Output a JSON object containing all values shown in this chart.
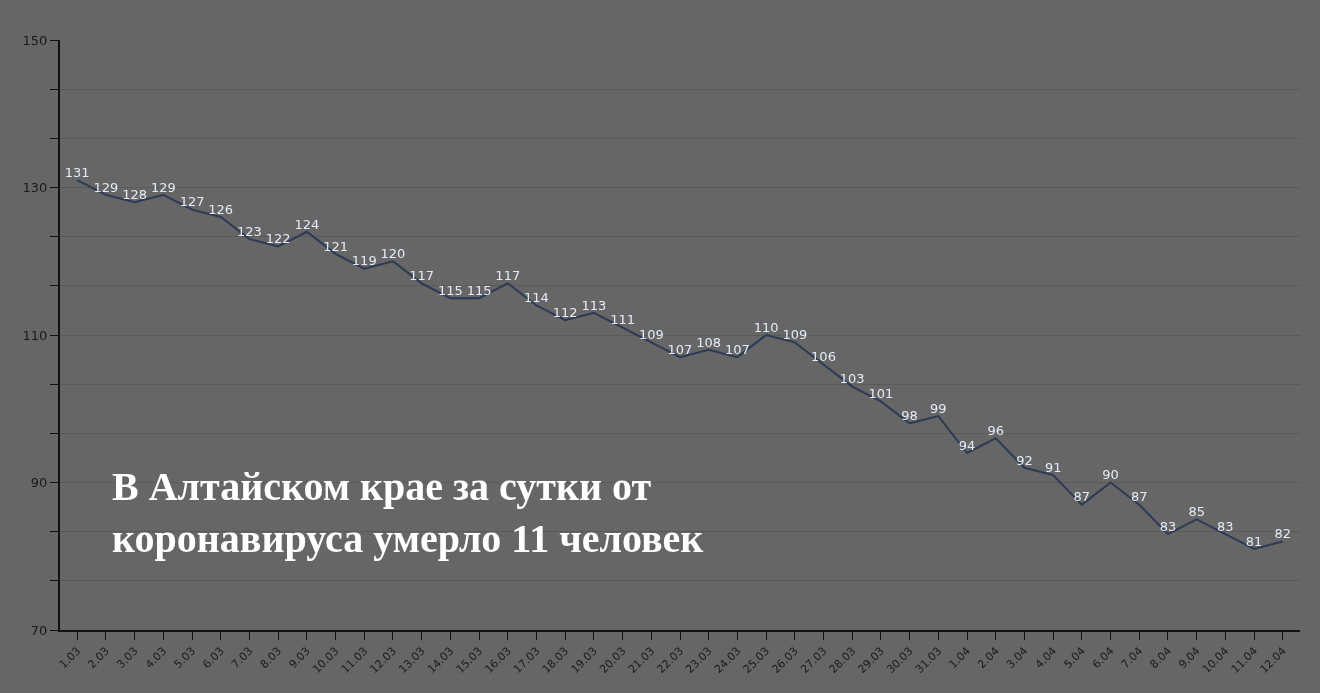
{
  "chart_data": {
    "type": "line",
    "title": "В Алтайском крае за сутки от коронавируса умерло 11 человек",
    "categories": [
      "1.03",
      "2.03",
      "3.03",
      "4.03",
      "5.03",
      "6.03",
      "7.03",
      "8.03",
      "9.03",
      "10.03",
      "11.03",
      "12.03",
      "13.03",
      "14.03",
      "15.03",
      "16.03",
      "17.03",
      "18.03",
      "19.03",
      "20.03",
      "21.03",
      "22.03",
      "23.03",
      "24.03",
      "25.03",
      "26.03",
      "27.03",
      "28.03",
      "29.03",
      "30.03",
      "31.03",
      "1.04",
      "2.04",
      "3.04",
      "4.04",
      "5.04",
      "6.04",
      "7.04",
      "8.04",
      "9.04",
      "10.04",
      "11.04",
      "12.04"
    ],
    "series": [
      {
        "color": "#2b3a55",
        "values": [
          131,
          129,
          128,
          129,
          127,
          126,
          123,
          122,
          124,
          121,
          119,
          120,
          117,
          115,
          115,
          117,
          114,
          112,
          113,
          111,
          109,
          107,
          108,
          107,
          110,
          109,
          106,
          103,
          101,
          98,
          99,
          94,
          96,
          92,
          91,
          87,
          90,
          87,
          83,
          85,
          83,
          81,
          82
        ]
      }
    ],
    "ylim": [
      70,
      150
    ],
    "yticks": [
      70,
      {
        "value": 76.67,
        "label": null
      },
      {
        "value": 83.33,
        "label": null
      },
      90,
      {
        "value": 96.67,
        "label": null
      },
      {
        "value": 103.33,
        "label": null
      },
      110,
      {
        "value": 116.67,
        "label": null
      },
      {
        "value": 123.33,
        "label": null
      },
      130,
      {
        "value": 136.67,
        "label": null
      },
      {
        "value": 143.33,
        "label": null
      },
      150
    ],
    "grid": "y",
    "marker": "none",
    "line_style": "solid",
    "data_labels": true
  }
}
